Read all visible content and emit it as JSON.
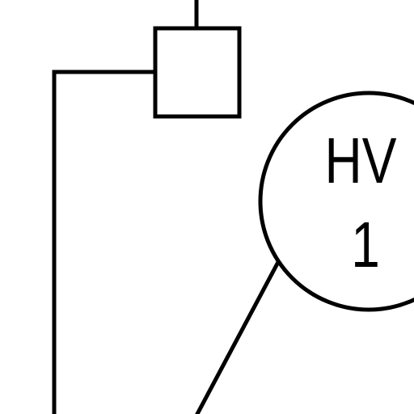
{
  "instrument": {
    "function": "HV",
    "loop_number": "1"
  },
  "colors": {
    "line": "#000000",
    "background": "#ffffff"
  }
}
